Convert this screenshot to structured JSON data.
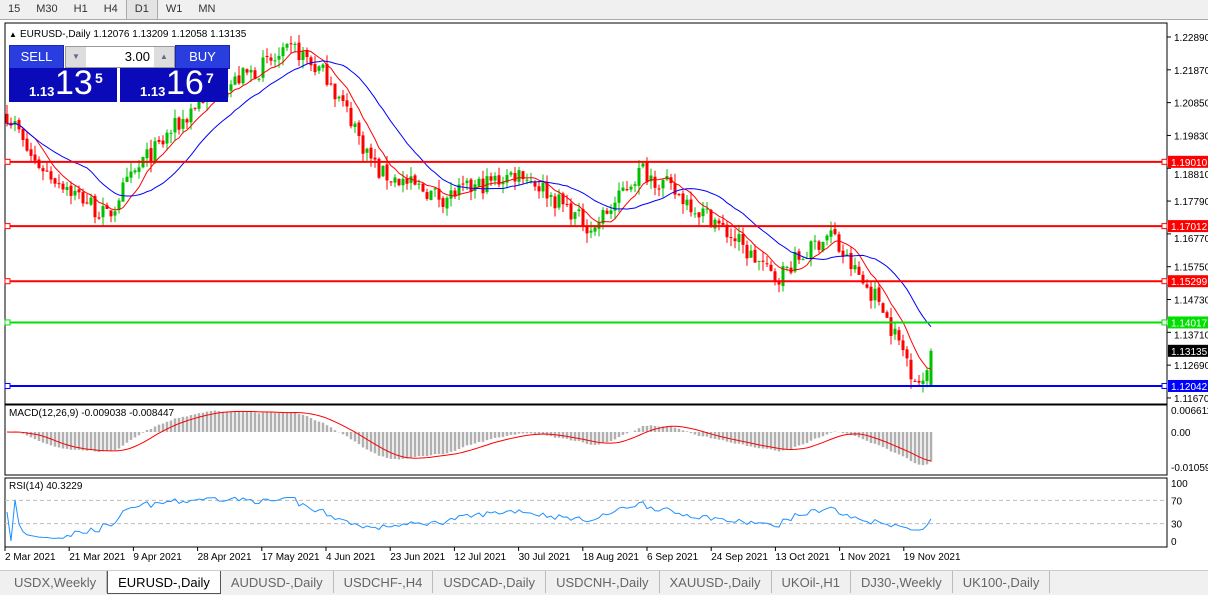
{
  "timeframes": [
    "15",
    "M30",
    "H1",
    "H4",
    "D1",
    "W1",
    "MN"
  ],
  "active_timeframe": "D1",
  "chart": {
    "header": "EURUSD-,Daily  1.12076 1.13209 1.12058 1.13135",
    "symbol": "EURUSD-",
    "period": "Daily",
    "ohlc": {
      "open": "1.12076",
      "high": "1.13209",
      "low": "1.12058",
      "close": "1.13135"
    }
  },
  "trade_panel": {
    "sell_label": "SELL",
    "buy_label": "BUY",
    "lot": "3.00",
    "sell_small": "1.13",
    "sell_big": "13",
    "sell_pip": "5",
    "buy_small": "1.13",
    "buy_big": "16",
    "buy_pip": "7"
  },
  "price_axis": [
    "1.22890",
    "1.21870",
    "1.20850",
    "1.19830",
    "1.18810",
    "1.17790",
    "1.16770",
    "1.15750",
    "1.14730",
    "1.13710",
    "1.12690",
    "1.11670"
  ],
  "current_price": "1.13135",
  "hlines": [
    {
      "price": "1.19010",
      "color": "#ff0000"
    },
    {
      "price": "1.17012",
      "color": "#ff0000"
    },
    {
      "price": "1.15299",
      "color": "#ff0000"
    },
    {
      "price": "1.14017",
      "color": "#00e000"
    },
    {
      "price": "1.12042",
      "color": "#0000ff"
    }
  ],
  "macd": {
    "label": "MACD(12,26,9) -0.009038 -0.008447",
    "axis": [
      "0.006611",
      "0.00",
      "-0.01059"
    ]
  },
  "rsi": {
    "label": "RSI(14) 40.3229",
    "axis": [
      "100",
      "70",
      "30",
      "0"
    ]
  },
  "dates": [
    "2 Mar 2021",
    "21 Mar 2021",
    "9 Apr 2021",
    "28 Apr 2021",
    "17 May 2021",
    "4 Jun 2021",
    "23 Jun 2021",
    "12 Jul 2021",
    "30 Jul 2021",
    "18 Aug 2021",
    "6 Sep 2021",
    "24 Sep 2021",
    "13 Oct 2021",
    "1 Nov 2021",
    "19 Nov 2021"
  ],
  "colors": {
    "bull": "#00c000",
    "bear": "#ff0000",
    "ma_fast": "#ff0000",
    "ma_slow": "#0000ff",
    "rsi": "#1e90ff",
    "macd_hist": "#b0b0b0"
  },
  "chart_data": {
    "type": "candlestick",
    "approx_close_path": [
      [
        "2021-03-02",
        1.205
      ],
      [
        "2021-03-10",
        1.19
      ],
      [
        "2021-03-31",
        1.173
      ],
      [
        "2021-04-09",
        1.188
      ],
      [
        "2021-04-28",
        1.21
      ],
      [
        "2021-05-25",
        1.225
      ],
      [
        "2021-06-04",
        1.216
      ],
      [
        "2021-06-18",
        1.187
      ],
      [
        "2021-07-07",
        1.179
      ],
      [
        "2021-07-30",
        1.187
      ],
      [
        "2021-08-20",
        1.169
      ],
      [
        "2021-09-03",
        1.188
      ],
      [
        "2021-09-24",
        1.172
      ],
      [
        "2021-10-12",
        1.154
      ],
      [
        "2021-10-28",
        1.168
      ],
      [
        "2021-11-04",
        1.156
      ],
      [
        "2021-11-12",
        1.146
      ],
      [
        "2021-11-19",
        1.129
      ],
      [
        "2021-11-24",
        1.12
      ],
      [
        "2021-11-26",
        1.13135
      ]
    ]
  },
  "symbol_tabs": [
    "USDX,Weekly",
    "EURUSD-,Daily",
    "AUDUSD-,Daily",
    "USDCHF-,H4",
    "USDCAD-,Daily",
    "USDCNH-,Daily",
    "XAUUSD-,Daily",
    "UKOil-,H1",
    "DJ30-,Weekly",
    "UK100-,Daily"
  ],
  "active_tab": "EURUSD-,Daily"
}
